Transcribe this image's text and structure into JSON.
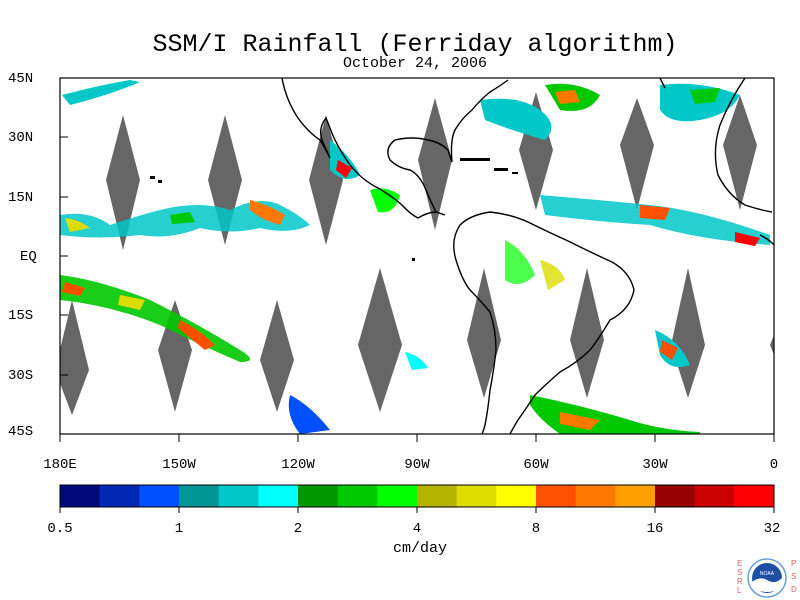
{
  "title": "SSM/I Rainfall (Ferriday algorithm)",
  "subtitle": "October 24, 2006",
  "map": {
    "lat_labels": [
      "45N",
      "30N",
      "15N",
      "EQ",
      "15S",
      "30S",
      "45S"
    ],
    "lon_labels": [
      "180E",
      "150W",
      "120W",
      "90W",
      "60W",
      "30W",
      "0"
    ],
    "extent": {
      "lon_min": -180,
      "lon_max": 0,
      "lat_min": -45,
      "lat_max": 45
    },
    "land_color": "#ffffff",
    "coastline_color": "#000000",
    "no_data_color": "#666666"
  },
  "colorbar": {
    "labels": [
      "0.5",
      "1",
      "2",
      "4",
      "8",
      "16",
      "32"
    ],
    "unit": "cm/day",
    "colors": [
      "#000a7a",
      "#0028b4",
      "#0050ff",
      "#009696",
      "#00c8c8",
      "#00ffff",
      "#009600",
      "#00c800",
      "#00ff00",
      "#b4b400",
      "#dcdc00",
      "#ffff00",
      "#ff5000",
      "#ff7800",
      "#ffa000",
      "#960000",
      "#c80000",
      "#ff0000"
    ]
  },
  "logo": {
    "left_text": "ESRL",
    "right_text": "PSD",
    "center_text": "NOAA"
  }
}
